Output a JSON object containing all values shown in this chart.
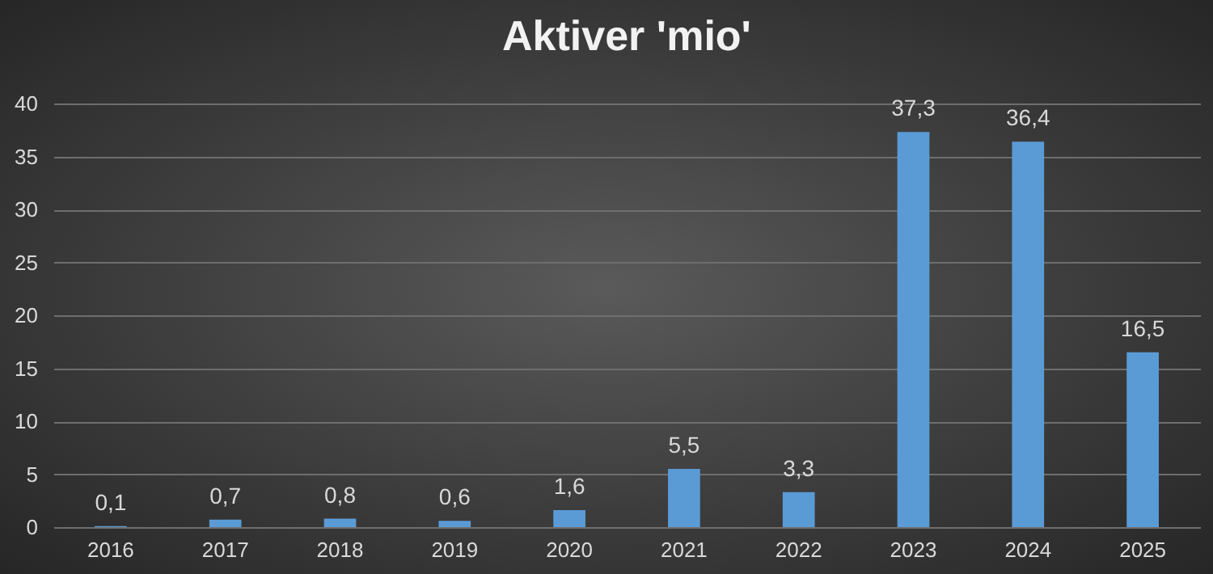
{
  "chart_data": {
    "type": "bar",
    "title": "Aktiver 'mio'",
    "categories": [
      "2016",
      "2017",
      "2018",
      "2019",
      "2020",
      "2021",
      "2022",
      "2023",
      "2024",
      "2025"
    ],
    "values": [
      0.1,
      0.7,
      0.8,
      0.6,
      1.6,
      5.5,
      3.3,
      37.3,
      36.4,
      16.5
    ],
    "value_labels": [
      "0,1",
      "0,7",
      "0,8",
      "0,6",
      "1,6",
      "5,5",
      "3,3",
      "37,3",
      "36,4",
      "16,5"
    ],
    "color": "#5b9bd5",
    "ylim": [
      0,
      40
    ],
    "yticks": [
      0,
      5,
      10,
      15,
      20,
      25,
      30,
      35,
      40
    ],
    "grid": "y"
  }
}
